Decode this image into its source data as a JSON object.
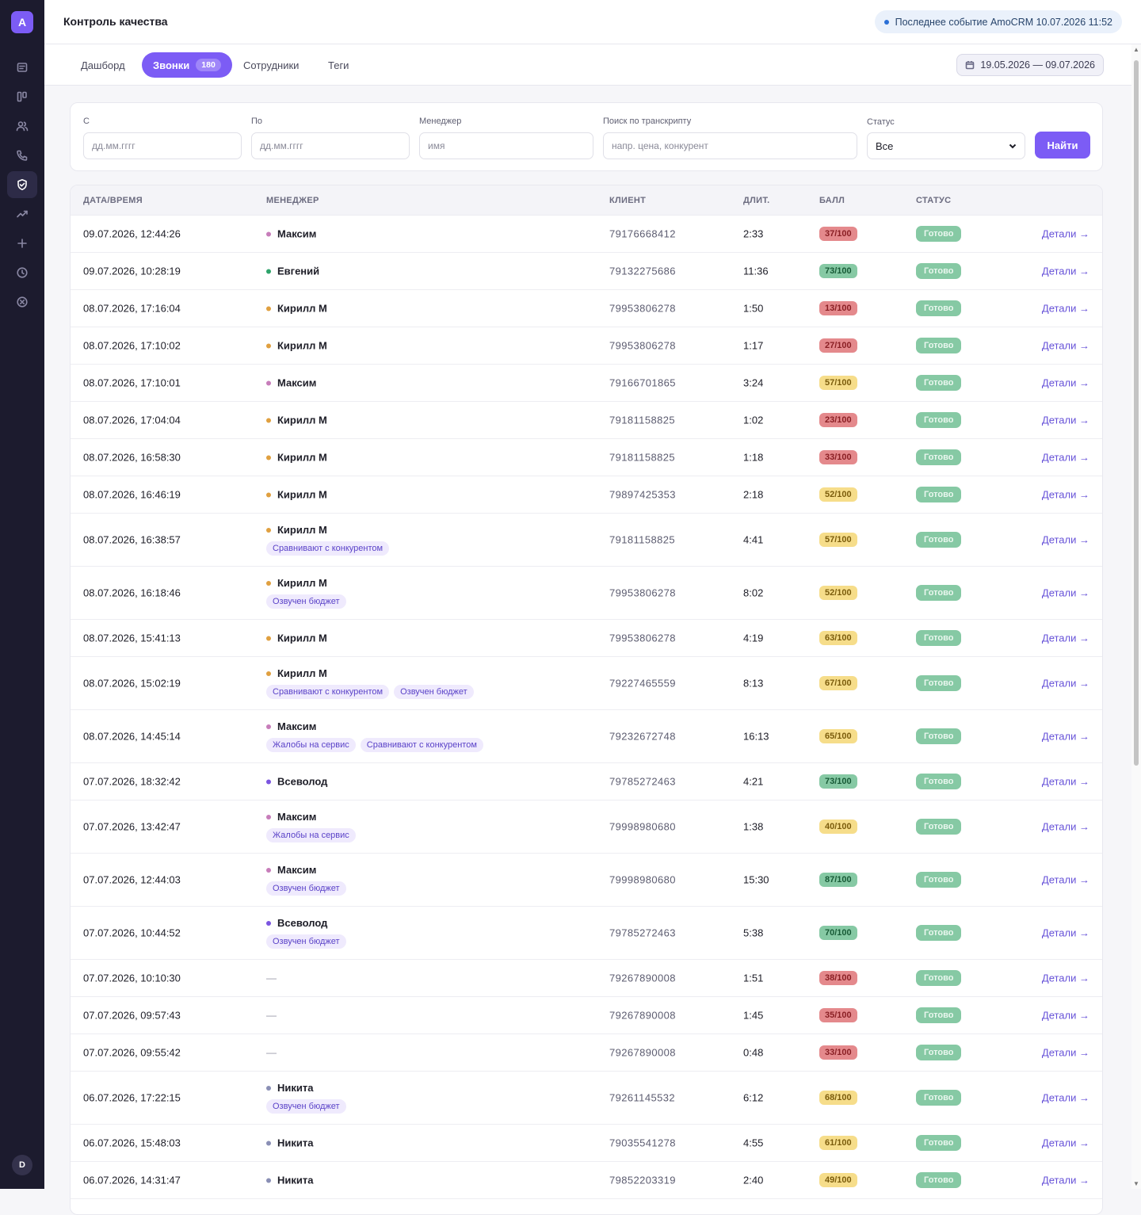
{
  "app": {
    "logo_letter": "A",
    "title": "Контроль качества",
    "user_initial": "D"
  },
  "event": {
    "text": "Последнее событие AmoCRM 10.07.2026 11:52"
  },
  "sidebar": {
    "items": [
      {
        "icon": "document-icon"
      },
      {
        "icon": "kanban-icon"
      },
      {
        "icon": "users-icon"
      },
      {
        "icon": "phone-icon"
      },
      {
        "icon": "shield-check-icon",
        "active": true
      },
      {
        "icon": "trend-icon"
      },
      {
        "icon": "plus-icon"
      },
      {
        "icon": "clock-icon"
      },
      {
        "icon": "close-circle-icon"
      }
    ]
  },
  "tabs": [
    {
      "label": "Дашборд"
    },
    {
      "label": "Звонки",
      "count": "180",
      "active": true
    },
    {
      "label": "Сотрудники"
    },
    {
      "label": "Теги"
    }
  ],
  "date_range": "19.05.2026 — 09.07.2026",
  "filters": {
    "from_label": "С",
    "from_placeholder": "дд.мм.гггг",
    "to_label": "По",
    "to_placeholder": "дд.мм.гггг",
    "manager_label": "Менеджер",
    "manager_placeholder": "имя",
    "search_label": "Поиск по транскрипту",
    "search_placeholder": "напр. цена, конкурент",
    "status_label": "Статус",
    "status_value": "Все",
    "find_label": "Найти"
  },
  "table": {
    "headers": [
      "ДАТА/ВРЕМЯ",
      "МЕНЕДЖЕР",
      "КЛИЕНТ",
      "ДЛИТ.",
      "БАЛЛ",
      "СТАТУС"
    ],
    "details_label": "Детали →",
    "rows": [
      {
        "date": "09.07.2026, 12:44:26",
        "manager": "Максим",
        "tags": [],
        "client": "79176668412",
        "duration": "2:33",
        "score": "37/100",
        "status": "Готово"
      },
      {
        "date": "09.07.2026, 10:28:19",
        "manager": "Евгений",
        "tags": [],
        "client": "79132275686",
        "duration": "11:36",
        "score": "73/100",
        "status": "Готово"
      },
      {
        "date": "08.07.2026, 17:16:04",
        "manager": "Кирилл М",
        "tags": [],
        "client": "79953806278",
        "duration": "1:50",
        "score": "13/100",
        "status": "Готово"
      },
      {
        "date": "08.07.2026, 17:10:02",
        "manager": "Кирилл М",
        "tags": [],
        "client": "79953806278",
        "duration": "1:17",
        "score": "27/100",
        "status": "Готово"
      },
      {
        "date": "08.07.2026, 17:10:01",
        "manager": "Максим",
        "tags": [],
        "client": "79166701865",
        "duration": "3:24",
        "score": "57/100",
        "status": "Готово"
      },
      {
        "date": "08.07.2026, 17:04:04",
        "manager": "Кирилл М",
        "tags": [],
        "client": "79181158825",
        "duration": "1:02",
        "score": "23/100",
        "status": "Готово"
      },
      {
        "date": "08.07.2026, 16:58:30",
        "manager": "Кирилл М",
        "tags": [],
        "client": "79181158825",
        "duration": "1:18",
        "score": "33/100",
        "status": "Готово"
      },
      {
        "date": "08.07.2026, 16:46:19",
        "manager": "Кирилл М",
        "tags": [],
        "client": "79897425353",
        "duration": "2:18",
        "score": "52/100",
        "status": "Готово"
      },
      {
        "date": "08.07.2026, 16:38:57",
        "manager": "Кирилл М",
        "tags": [
          "Сравнивают с конкурентом"
        ],
        "client": "79181158825",
        "duration": "4:41",
        "score": "57/100",
        "status": "Готово"
      },
      {
        "date": "08.07.2026, 16:18:46",
        "manager": "Кирилл М",
        "tags": [
          "Озвучен бюджет"
        ],
        "client": "79953806278",
        "duration": "8:02",
        "score": "52/100",
        "status": "Готово"
      },
      {
        "date": "08.07.2026, 15:41:13",
        "manager": "Кирилл М",
        "tags": [],
        "client": "79953806278",
        "duration": "4:19",
        "score": "63/100",
        "status": "Готово"
      },
      {
        "date": "08.07.2026, 15:02:19",
        "manager": "Кирилл М",
        "tags": [
          "Сравнивают с конкурентом",
          "Озвучен бюджет"
        ],
        "client": "79227465559",
        "duration": "8:13",
        "score": "67/100",
        "status": "Готово"
      },
      {
        "date": "08.07.2026, 14:45:14",
        "manager": "Максим",
        "tags": [
          "Жалобы на сервис",
          "Сравнивают с конкурентом"
        ],
        "client": "79232672748",
        "duration": "16:13",
        "score": "65/100",
        "status": "Готово"
      },
      {
        "date": "07.07.2026, 18:32:42",
        "manager": "Всеволод",
        "tags": [],
        "client": "79785272463",
        "duration": "4:21",
        "score": "73/100",
        "status": "Готово"
      },
      {
        "date": "07.07.2026, 13:42:47",
        "manager": "Максим",
        "tags": [
          "Жалобы на сервис"
        ],
        "client": "79998980680",
        "duration": "1:38",
        "score": "40/100",
        "status": "Готово"
      },
      {
        "date": "07.07.2026, 12:44:03",
        "manager": "Максим",
        "tags": [
          "Озвучен бюджет"
        ],
        "client": "79998980680",
        "duration": "15:30",
        "score": "87/100",
        "status": "Готово"
      },
      {
        "date": "07.07.2026, 10:44:52",
        "manager": "Всеволод",
        "tags": [
          "Озвучен бюджет"
        ],
        "client": "79785272463",
        "duration": "5:38",
        "score": "70/100",
        "status": "Готово"
      },
      {
        "date": "07.07.2026, 10:10:30",
        "manager": "—",
        "tags": [],
        "client": "79267890008",
        "duration": "1:51",
        "score": "38/100",
        "status": "Готово"
      },
      {
        "date": "07.07.2026, 09:57:43",
        "manager": "—",
        "tags": [],
        "client": "79267890008",
        "duration": "1:45",
        "score": "35/100",
        "status": "Готово"
      },
      {
        "date": "07.07.2026, 09:55:42",
        "manager": "—",
        "tags": [],
        "client": "79267890008",
        "duration": "0:48",
        "score": "33/100",
        "status": "Готово"
      },
      {
        "date": "06.07.2026, 17:22:15",
        "manager": "Никита",
        "tags": [
          "Озвучен бюджет"
        ],
        "client": "79261145532",
        "duration": "6:12",
        "score": "68/100",
        "status": "Готово"
      },
      {
        "date": "06.07.2026, 15:48:03",
        "manager": "Никита",
        "tags": [],
        "client": "79035541278",
        "duration": "4:55",
        "score": "61/100",
        "status": "Готово"
      },
      {
        "date": "06.07.2026, 14:31:47",
        "manager": "Никита",
        "tags": [],
        "client": "79852203319",
        "duration": "2:40",
        "score": "49/100",
        "status": "Готово"
      }
    ]
  },
  "colors": {
    "accent": "#7c5cf5",
    "manager_dots": {
      "Максим": "#c77dba",
      "Евгений": "#2fa36b",
      "Кирилл М": "#e0a040",
      "Всеволод": "#7b55e0",
      "Никита": "#8a8fb5"
    }
  }
}
